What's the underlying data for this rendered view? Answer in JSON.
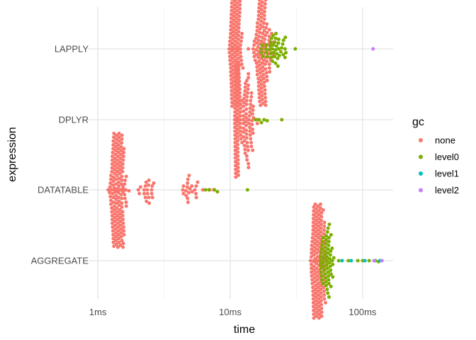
{
  "chart_data": {
    "type": "scatter",
    "subtype": "beeswarm",
    "title": "",
    "xlabel": "time",
    "ylabel": "expression",
    "x_scale": "log10",
    "x_unit": "ms",
    "xlim": [
      0.85,
      170
    ],
    "x_ticks": [
      {
        "value": 1,
        "label": "1ms"
      },
      {
        "value": 10,
        "label": "10ms"
      },
      {
        "value": 100,
        "label": "100ms"
      }
    ],
    "categories": [
      "LAPPLY",
      "DPLYR",
      "DATATABLE",
      "AGGREGATE"
    ],
    "grid": true,
    "legend": {
      "title": "gc",
      "position": "right",
      "entries": [
        {
          "key": "none",
          "label": "none",
          "color": "#F8766D"
        },
        {
          "key": "level0",
          "label": "level0",
          "color": "#7CAE00"
        },
        {
          "key": "level1",
          "label": "level1",
          "color": "#00BFC4"
        },
        {
          "key": "level2",
          "label": "level2",
          "color": "#C77CFF"
        }
      ]
    },
    "series": [
      {
        "expression": "LAPPLY",
        "median_ms": 11.2,
        "none_range": [
          9.8,
          22
        ],
        "level0_range": [
          17,
          31
        ],
        "level1": [],
        "level2": [
          120
        ]
      },
      {
        "expression": "DPLYR",
        "median_ms": 11.5,
        "none_range": [
          10.8,
          17
        ],
        "level0_range": [
          15,
          24.5
        ],
        "level1": [],
        "level2": []
      },
      {
        "expression": "DATATABLE",
        "median_ms": 1.45,
        "none_range": [
          1.15,
          7.5
        ],
        "level0_range": [
          6.2,
          13.5
        ],
        "level1": [],
        "level2": []
      },
      {
        "expression": "AGGREGATE",
        "median_ms": 46,
        "none_range": [
          40,
          60
        ],
        "level0_range": [
          45,
          132
        ],
        "level1": [
          70,
          82,
          104,
          135
        ],
        "level2": [
          122,
          140
        ]
      }
    ]
  }
}
